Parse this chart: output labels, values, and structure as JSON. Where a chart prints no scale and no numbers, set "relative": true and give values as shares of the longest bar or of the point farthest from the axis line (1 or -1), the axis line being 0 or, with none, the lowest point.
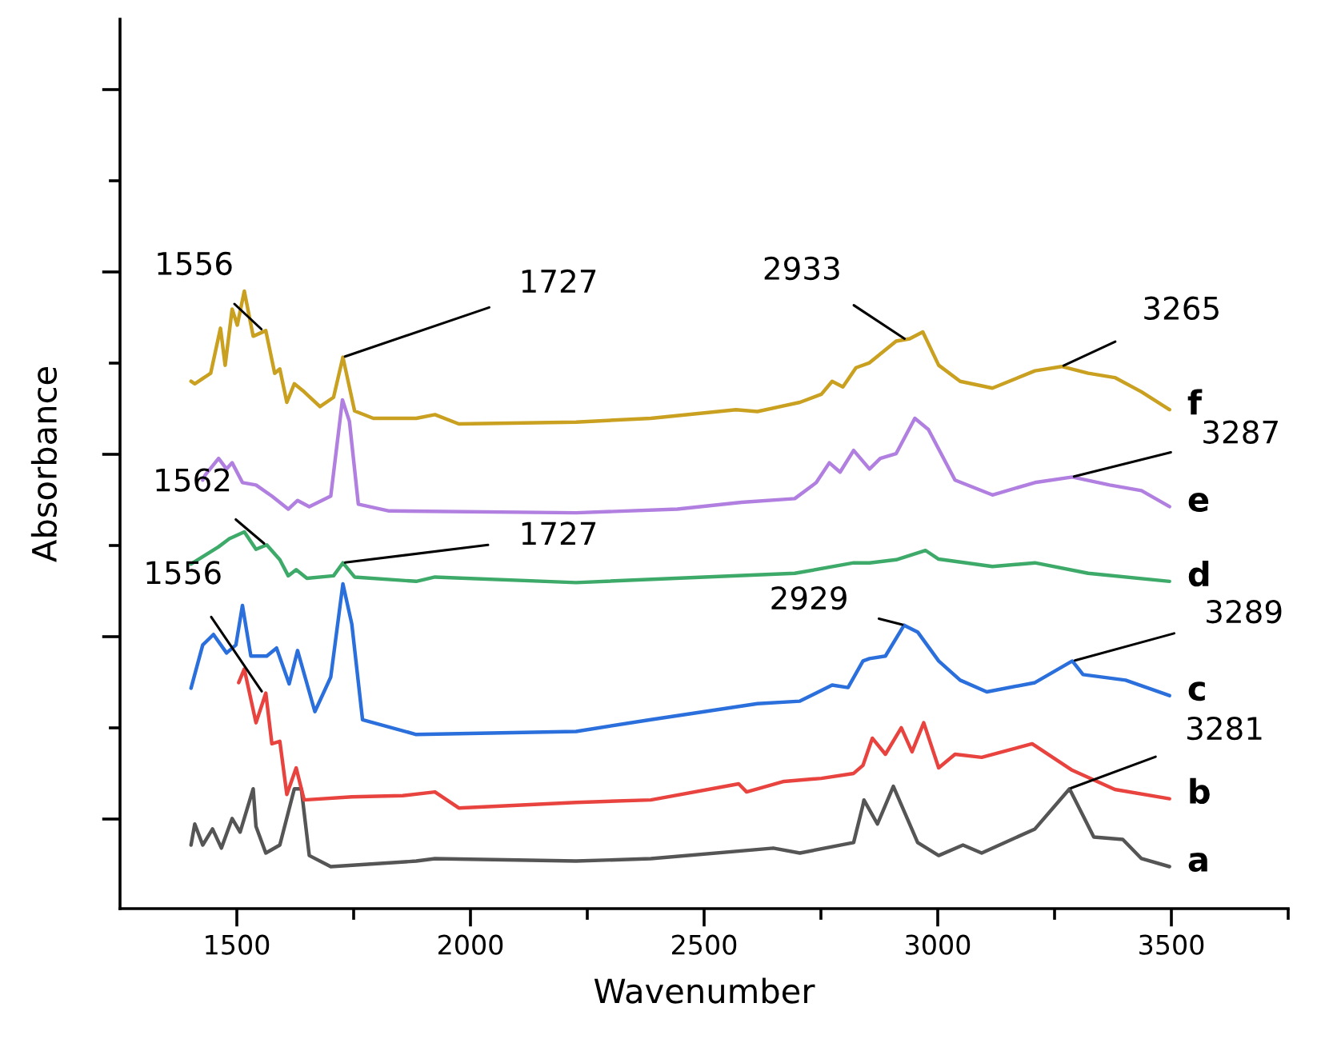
{
  "chart_data": {
    "type": "line",
    "relative": true,
    "xlabel": "Wavenumber",
    "ylabel": "Absorbance",
    "xlim": [
      1250,
      3750
    ],
    "xticks": [
      1500,
      {
        "value": 1750,
        "label": null
      },
      2000,
      {
        "value": 2250,
        "label": null
      },
      2500,
      {
        "value": 2750,
        "label": null
      },
      3000,
      {
        "value": 3250,
        "label": null
      },
      3500,
      {
        "value": 3750,
        "label": null
      }
    ],
    "grid": false,
    "marker": "none",
    "line_style": "solid",
    "series": [
      {
        "name": "a",
        "color": "#555555",
        "x": [
          1402,
          1410,
          1427,
          1448,
          1467,
          1490,
          1507,
          1535,
          1541,
          1562,
          1592,
          1623,
          1638,
          1655,
          1701,
          1884,
          1924,
          2226,
          2386,
          2648,
          2705,
          2820,
          2840,
          2842,
          2871,
          2905,
          2957,
          3002,
          3054,
          3094,
          3208,
          3282,
          3334,
          3396,
          3436,
          3496
        ],
        "values": [
          0.103,
          0.137,
          0.103,
          0.129,
          0.098,
          0.146,
          0.124,
          0.194,
          0.133,
          0.09,
          0.103,
          0.194,
          0.194,
          0.086,
          0.068,
          0.077,
          0.081,
          0.077,
          0.081,
          0.098,
          0.09,
          0.107,
          0.168,
          0.176,
          0.137,
          0.198,
          0.107,
          0.086,
          0.103,
          0.09,
          0.129,
          0.194,
          0.116,
          0.112,
          0.081,
          0.068
        ]
      },
      {
        "name": "b",
        "color": "#e8433e",
        "x": [
          1504,
          1516,
          1541,
          1562,
          1575,
          1592,
          1607,
          1627,
          1644,
          1746,
          1855,
          1924,
          1975,
          2226,
          2386,
          2574,
          2591,
          2671,
          2751,
          2820,
          2840,
          2860,
          2888,
          2922,
          2945,
          2970,
          3002,
          3037,
          3094,
          3202,
          3288,
          3379,
          3496
        ],
        "values": [
          0.366,
          0.388,
          0.301,
          0.349,
          0.267,
          0.271,
          0.185,
          0.228,
          0.176,
          0.181,
          0.183,
          0.189,
          0.163,
          0.172,
          0.176,
          0.202,
          0.189,
          0.206,
          0.211,
          0.219,
          0.232,
          0.276,
          0.25,
          0.293,
          0.254,
          0.301,
          0.228,
          0.25,
          0.245,
          0.267,
          0.224,
          0.193,
          0.178
        ]
      },
      {
        "name": "c",
        "color": "#2a6fdb",
        "x": [
          1402,
          1427,
          1450,
          1478,
          1498,
          1512,
          1530,
          1564,
          1585,
          1612,
          1630,
          1667,
          1701,
          1727,
          1746,
          1769,
          1884,
          2226,
          2386,
          2614,
          2705,
          2774,
          2808,
          2840,
          2854,
          2888,
          2928,
          2957,
          3002,
          3048,
          3105,
          3208,
          3288,
          3311,
          3402,
          3496
        ],
        "values": [
          0.357,
          0.427,
          0.444,
          0.414,
          0.427,
          0.491,
          0.409,
          0.409,
          0.422,
          0.364,
          0.418,
          0.319,
          0.375,
          0.526,
          0.461,
          0.306,
          0.282,
          0.287,
          0.306,
          0.332,
          0.336,
          0.362,
          0.358,
          0.401,
          0.405,
          0.409,
          0.459,
          0.448,
          0.401,
          0.37,
          0.351,
          0.366,
          0.401,
          0.379,
          0.37,
          0.345
        ]
      },
      {
        "name": "d",
        "color": "#3daa6a",
        "x": [
          1402,
          1461,
          1484,
          1516,
          1541,
          1564,
          1592,
          1610,
          1627,
          1650,
          1707,
          1727,
          1752,
          1884,
          1924,
          2226,
          2500,
          2694,
          2820,
          2854,
          2911,
          2974,
          3002,
          3117,
          3208,
          3322,
          3496
        ],
        "values": [
          0.558,
          0.586,
          0.599,
          0.61,
          0.582,
          0.589,
          0.565,
          0.539,
          0.549,
          0.535,
          0.539,
          0.56,
          0.537,
          0.53,
          0.537,
          0.528,
          0.537,
          0.543,
          0.56,
          0.56,
          0.565,
          0.58,
          0.566,
          0.554,
          0.56,
          0.543,
          0.53
        ]
      },
      {
        "name": "e",
        "color": "#b07fe0",
        "x": [
          1427,
          1433,
          1461,
          1478,
          1490,
          1512,
          1541,
          1575,
          1610,
          1630,
          1655,
          1701,
          1726,
          1741,
          1760,
          1826,
          2226,
          2443,
          2580,
          2694,
          2740,
          2768,
          2791,
          2820,
          2854,
          2877,
          2911,
          2951,
          2980,
          3037,
          3117,
          3208,
          3288,
          3368,
          3436,
          3496
        ],
        "values": [
          0.694,
          0.703,
          0.729,
          0.712,
          0.722,
          0.69,
          0.686,
          0.668,
          0.647,
          0.661,
          0.651,
          0.668,
          0.824,
          0.789,
          0.655,
          0.644,
          0.641,
          0.647,
          0.658,
          0.664,
          0.69,
          0.722,
          0.707,
          0.742,
          0.712,
          0.729,
          0.737,
          0.794,
          0.776,
          0.694,
          0.67,
          0.69,
          0.699,
          0.686,
          0.677,
          0.651
        ]
      },
      {
        "name": "f",
        "color": "#c9a020",
        "x": [
          1402,
          1410,
          1444,
          1465,
          1475,
          1490,
          1501,
          1516,
          1535,
          1562,
          1581,
          1592,
          1607,
          1623,
          1644,
          1678,
          1707,
          1727,
          1752,
          1792,
          1884,
          1924,
          1975,
          2226,
          2386,
          2568,
          2614,
          2705,
          2751,
          2774,
          2797,
          2825,
          2854,
          2911,
          2940,
          2968,
          3002,
          3048,
          3117,
          3208,
          3265,
          3322,
          3379,
          3436,
          3496
        ],
        "values": [
          0.854,
          0.85,
          0.867,
          0.94,
          0.88,
          0.971,
          0.945,
          1.0,
          0.927,
          0.936,
          0.867,
          0.874,
          0.82,
          0.85,
          0.837,
          0.813,
          0.828,
          0.893,
          0.806,
          0.794,
          0.794,
          0.8,
          0.785,
          0.788,
          0.794,
          0.808,
          0.805,
          0.82,
          0.833,
          0.854,
          0.845,
          0.876,
          0.884,
          0.919,
          0.923,
          0.934,
          0.88,
          0.854,
          0.843,
          0.871,
          0.878,
          0.867,
          0.86,
          0.837,
          0.808
        ]
      }
    ],
    "annotations": [
      {
        "text": "1556",
        "x": 1556,
        "y": 0.936
      },
      {
        "text": "1727",
        "x": 1727,
        "y": 0.893
      },
      {
        "text": "2933",
        "x": 2933,
        "y": 0.921
      },
      {
        "text": "3265",
        "x": 3265,
        "y": 0.878
      },
      {
        "text": "3287",
        "x": 3287,
        "y": 0.699
      },
      {
        "text": "1562",
        "x": 1562,
        "y": 0.589
      },
      {
        "text": "1727",
        "x": 1727,
        "y": 0.56
      },
      {
        "text": "1556",
        "x": 1556,
        "y": 0.349
      },
      {
        "text": "2929",
        "x": 2929,
        "y": 0.459
      },
      {
        "text": "3289",
        "x": 3289,
        "y": 0.401
      },
      {
        "text": "3281",
        "x": 3281,
        "y": 0.194
      }
    ]
  }
}
